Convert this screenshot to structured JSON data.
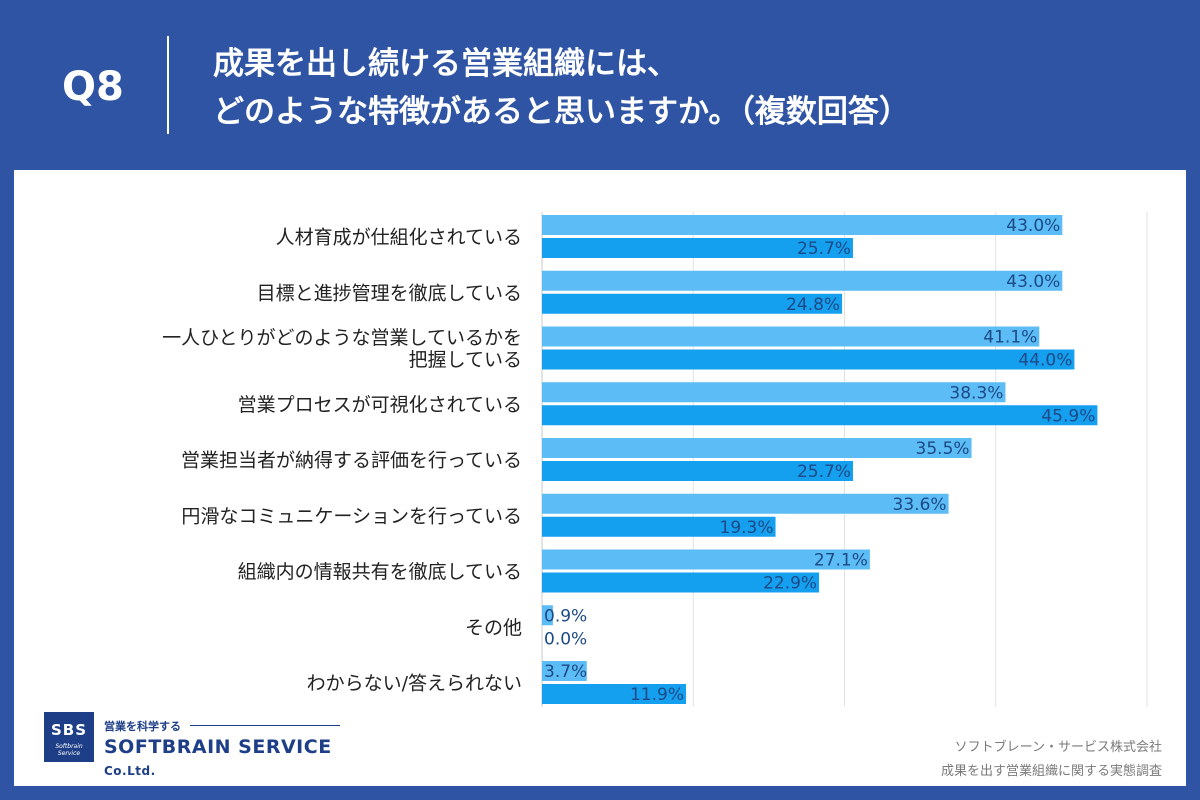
{
  "header": {
    "question_number": "Q8",
    "title_line1": "成果を出し続ける営業組織には、",
    "title_line2": "どのような特徴があると思いますか。（複数回答）"
  },
  "logo": {
    "badge": "SBS",
    "badge_sub": "Softbrain Service",
    "tagline": "営業を科学する",
    "name": "SOFTBRAIN SERVICE",
    "suffix": "Co.Ltd."
  },
  "source": {
    "company": "ソフトブレーン・サービス株式会社",
    "survey": "成果を出す営業組織に関する実態調査"
  },
  "colors": {
    "background": "#2f54a4",
    "series1": "#5bbcf6",
    "series2": "#159fef",
    "label": "#1d4a86"
  },
  "chart_data": {
    "type": "bar",
    "orientation": "horizontal",
    "categories": [
      [
        "人材育成が仕組化されている"
      ],
      [
        "目標と進捗管理を徹底している"
      ],
      [
        "一人ひとりがどのような営業しているかを",
        "把握している"
      ],
      [
        "営業プロセスが可視化されている"
      ],
      [
        "営業担当者が納得する評価を行っている"
      ],
      [
        "円滑なコミュニケーションを行っている"
      ],
      [
        "組織内の情報共有を徹底している"
      ],
      [
        "その他"
      ],
      [
        "わからない/答えられない"
      ]
    ],
    "series": [
      {
        "values": [
          43.0,
          43.0,
          41.1,
          38.3,
          35.5,
          33.6,
          27.1,
          0.9,
          3.7
        ]
      },
      {
        "values": [
          25.7,
          24.8,
          44.0,
          45.9,
          25.7,
          19.3,
          22.9,
          0.0,
          11.9
        ]
      }
    ],
    "value_suffix": "%",
    "xlim": [
      0,
      50
    ],
    "grid": true,
    "legend": "none"
  }
}
